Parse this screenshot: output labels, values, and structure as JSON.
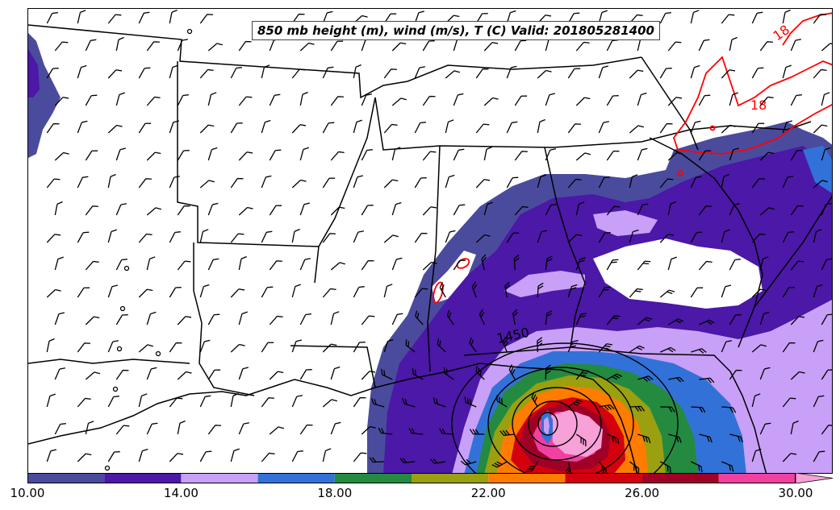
{
  "title": "850 mb height (m), wind (m/s), T (C) Valid: 201805281400",
  "colorbar": {
    "bins": [
      {
        "from": 10,
        "to": 12,
        "color": "#4b4b9e"
      },
      {
        "from": 12,
        "to": 14,
        "color": "#4b18a8"
      },
      {
        "from": 14,
        "to": 16,
        "color": "#c8a0f8"
      },
      {
        "from": 16,
        "to": 18,
        "color": "#3272d8"
      },
      {
        "from": 18,
        "to": 20,
        "color": "#238a40"
      },
      {
        "from": 20,
        "to": 22,
        "color": "#9aa010"
      },
      {
        "from": 22,
        "to": 24,
        "color": "#ff7c00"
      },
      {
        "from": 24,
        "to": 26,
        "color": "#d4000e"
      },
      {
        "from": 26,
        "to": 28,
        "color": "#a00026"
      },
      {
        "from": 28,
        "to": 30,
        "color": "#f040a0"
      }
    ],
    "over_color": "#f8a0d8",
    "tick_labels": [
      "10.00",
      "14.00",
      "18.00",
      "22.00",
      "26.00",
      "30.00"
    ]
  },
  "contours": {
    "height_label": "1450",
    "temperature_labels": [
      "18",
      "18"
    ],
    "temperature_color": "#ff0000"
  }
}
